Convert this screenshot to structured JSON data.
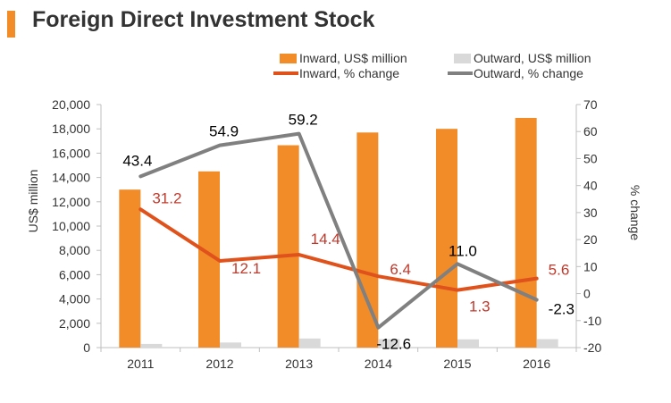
{
  "header": {
    "title": "Foreign Direct Investment Stock"
  },
  "chart_data": {
    "type": "bar",
    "categories": [
      "2011",
      "2012",
      "2013",
      "2014",
      "2015",
      "2016"
    ],
    "bar_series": [
      {
        "name": "Inward, US$ million",
        "color": "#f28c28",
        "values": [
          13000,
          14500,
          16650,
          17700,
          18000,
          18900
        ]
      },
      {
        "name": "Outward, US$ million",
        "color": "#d9d9d9",
        "values": [
          300,
          420,
          750,
          700,
          680,
          700
        ]
      }
    ],
    "line_series": [
      {
        "name": "Inward, % change",
        "color": "#e0521c",
        "label_color": "#c0392b",
        "values": [
          31.2,
          12.1,
          14.4,
          6.4,
          1.3,
          5.6
        ],
        "labels": [
          "31.2",
          "12.1",
          "14.4",
          "6.4",
          "1.3",
          "5.6"
        ]
      },
      {
        "name": "Outward, % change",
        "color": "#808080",
        "label_color": "#000000",
        "values": [
          43.4,
          54.9,
          59.2,
          -12.6,
          11.0,
          -2.3
        ],
        "labels": [
          "43.4",
          "54.9",
          "59.2",
          "-12.6",
          "11.0",
          "-2.3"
        ]
      }
    ],
    "ylabel": "US$ million",
    "y2label": "% change",
    "ylim": [
      0,
      20000
    ],
    "y2lim": [
      -20,
      70
    ],
    "y_ticks": [
      "0",
      "2,000",
      "4,000",
      "6,000",
      "8,000",
      "10,000",
      "12,000",
      "14,000",
      "16,000",
      "18,000",
      "20,000"
    ],
    "y2_ticks": [
      "-20",
      "-10",
      "0",
      "10",
      "20",
      "30",
      "40",
      "50",
      "60",
      "70"
    ],
    "legend": "top-right"
  }
}
